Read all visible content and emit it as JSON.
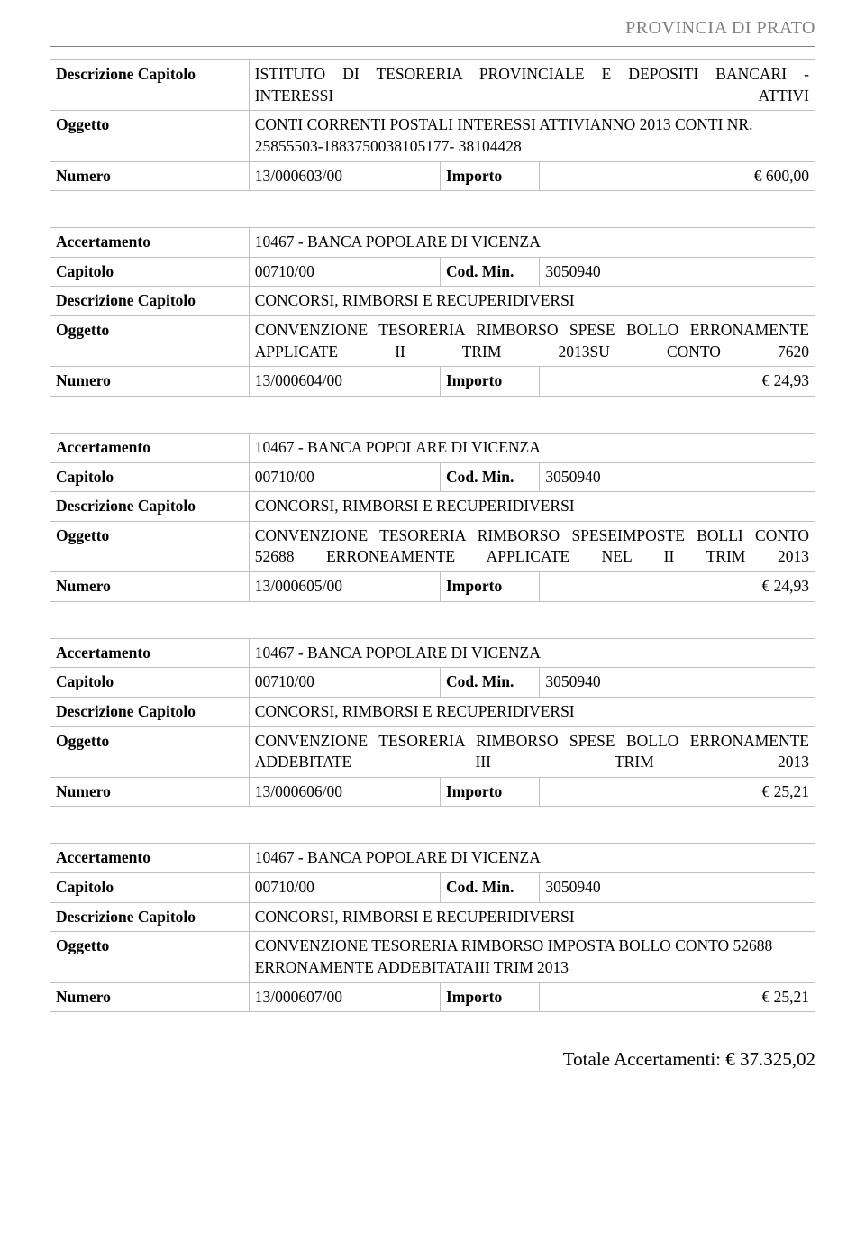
{
  "header": {
    "title": "PROVINCIA DI PRATO"
  },
  "labels": {
    "descrizione_capitolo": "Descrizione Capitolo",
    "oggetto": "Oggetto",
    "numero": "Numero",
    "importo": "Importo",
    "accertamento": "Accertamento",
    "capitolo": "Capitolo",
    "cod_min": "Cod. Min.",
    "totale_prefix": "Totale Accertamenti: "
  },
  "topBlock": {
    "descrizione_capitolo": "ISTITUTO DI TESORERIA PROVINCIALE E DEPOSITI BANCARI - INTERESSI ATTIVI",
    "oggetto": "CONTI CORRENTI POSTALI INTERESSI ATTIVIANNO 2013 CONTI NR. 25855503-1883750038105177- 38104428",
    "numero": "13/000603/00",
    "importo": "€ 600,00"
  },
  "blocks": [
    {
      "accertamento": "10467 - BANCA POPOLARE DI VICENZA",
      "capitolo": "00710/00",
      "cod_min": "3050940",
      "descrizione_capitolo": "CONCORSI, RIMBORSI E RECUPERIDIVERSI",
      "oggetto": "CONVENZIONE TESORERIA RIMBORSO SPESE BOLLO ERRONAMENTE APPLICATE II TRIM 2013SU CONTO 7620",
      "oggetto_justify": true,
      "numero": "13/000604/00",
      "importo": "€ 24,93"
    },
    {
      "accertamento": "10467 - BANCA POPOLARE DI VICENZA",
      "capitolo": "00710/00",
      "cod_min": "3050940",
      "descrizione_capitolo": "CONCORSI, RIMBORSI E RECUPERIDIVERSI",
      "oggetto": "CONVENZIONE TESORERIA RIMBORSO SPESEIMPOSTE BOLLI CONTO 52688 ERRONEAMENTE APPLICATE NEL II TRIM 2013",
      "oggetto_justify": true,
      "numero": "13/000605/00",
      "importo": "€ 24,93"
    },
    {
      "accertamento": "10467 - BANCA POPOLARE DI VICENZA",
      "capitolo": "00710/00",
      "cod_min": "3050940",
      "descrizione_capitolo": "CONCORSI, RIMBORSI E RECUPERIDIVERSI",
      "oggetto": "CONVENZIONE TESORERIA RIMBORSO SPESE BOLLO ERRONAMENTE ADDEBITATE III TRIM 2013",
      "oggetto_justify": true,
      "numero": "13/000606/00",
      "importo": "€ 25,21"
    },
    {
      "accertamento": "10467 - BANCA POPOLARE DI VICENZA",
      "capitolo": "00710/00",
      "cod_min": "3050940",
      "descrizione_capitolo": "CONCORSI, RIMBORSI E RECUPERIDIVERSI",
      "oggetto": "CONVENZIONE TESORERIA RIMBORSO IMPOSTA BOLLO CONTO 52688 ERRONAMENTE ADDEBITATAIII TRIM 2013",
      "oggetto_justify": false,
      "numero": "13/000607/00",
      "importo": "€ 25,21"
    }
  ],
  "totale": "€ 37.325,02"
}
